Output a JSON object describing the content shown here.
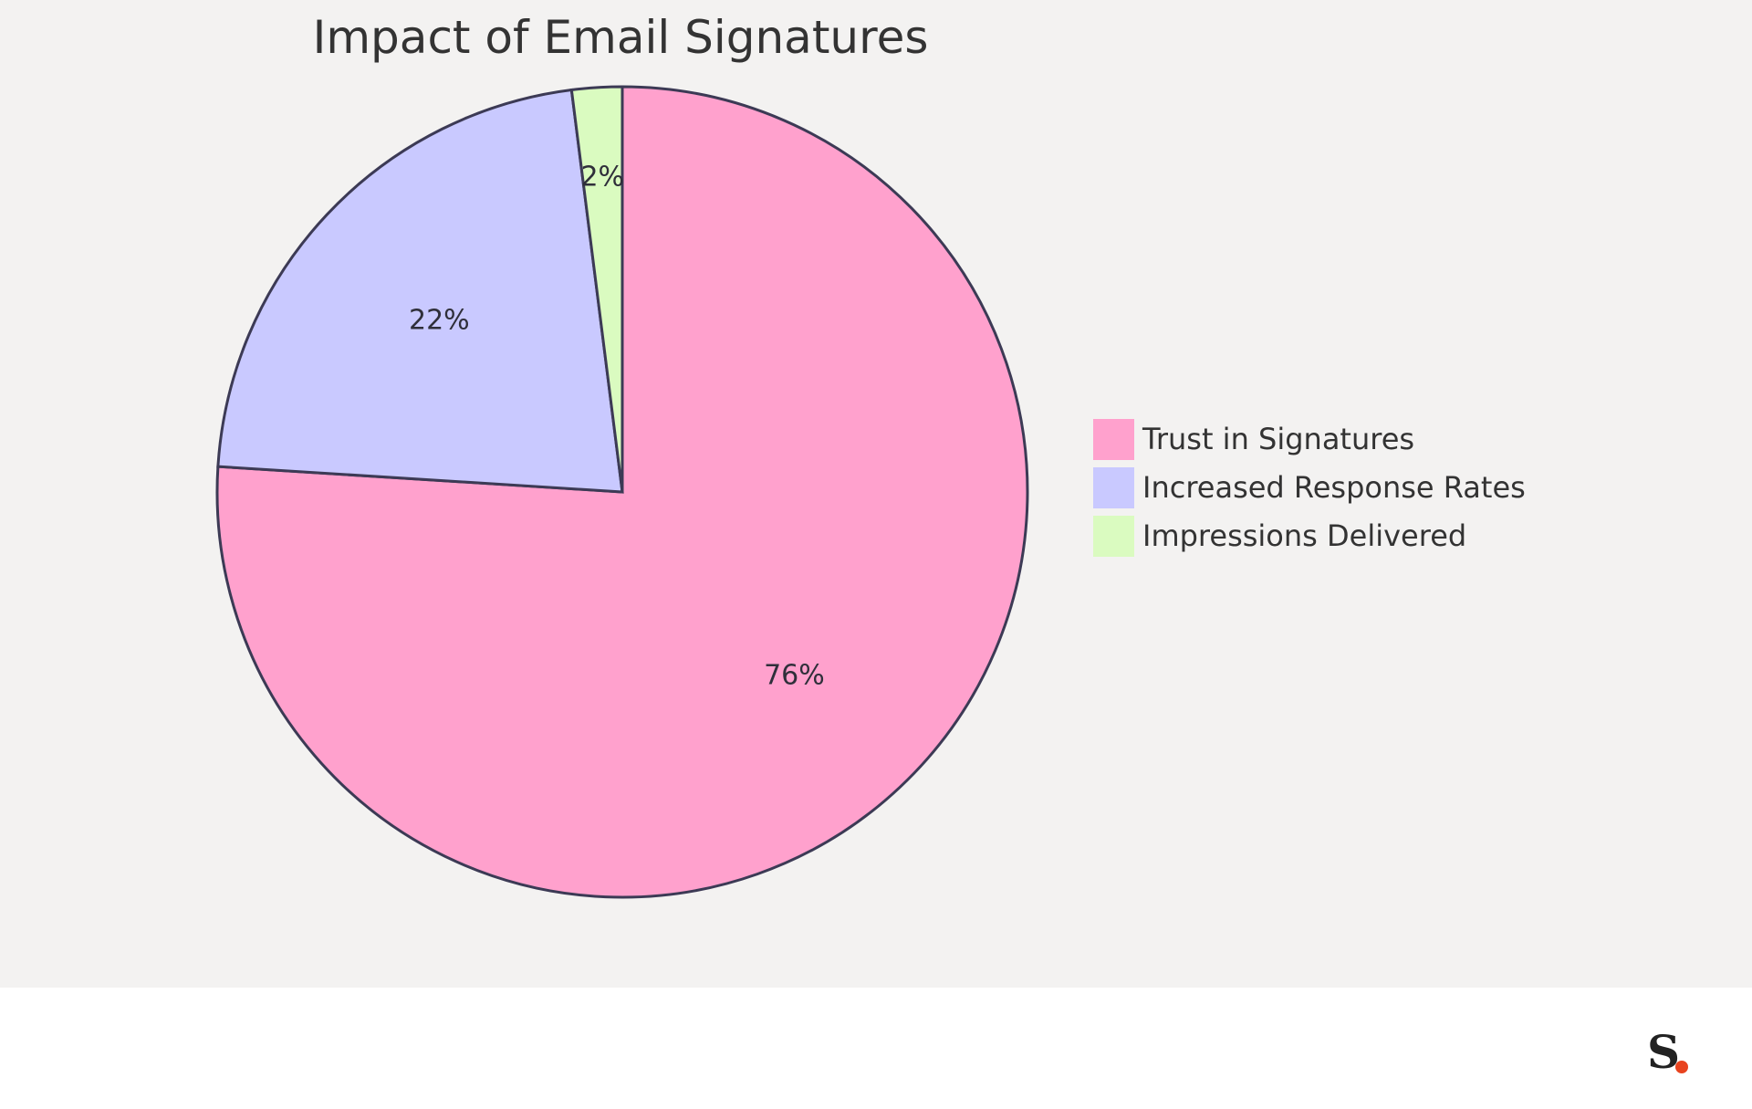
{
  "chart_data": {
    "type": "pie",
    "title": "Impact of Email Signatures",
    "series": [
      {
        "name": "Trust in Signatures",
        "value": 76,
        "label": "76%",
        "color": "#FFA1CD"
      },
      {
        "name": "Increased Response Rates",
        "value": 22,
        "label": "22%",
        "color": "#C9C9FF"
      },
      {
        "name": "Impressions Delivered",
        "value": 2,
        "label": "2%",
        "color": "#DAFBC0"
      }
    ],
    "start_angle": "12 o'clock",
    "direction": "clockwise",
    "legend_placement": "right",
    "slice_border_color": "#3c3a55"
  },
  "colors": {
    "background": "#f3f2f1",
    "footer_background": "#ffffff",
    "text": "#333333",
    "brand_dot": "#e8431f"
  },
  "brand": {
    "logo_letter": "S",
    "logo_name": "brand-logo"
  }
}
